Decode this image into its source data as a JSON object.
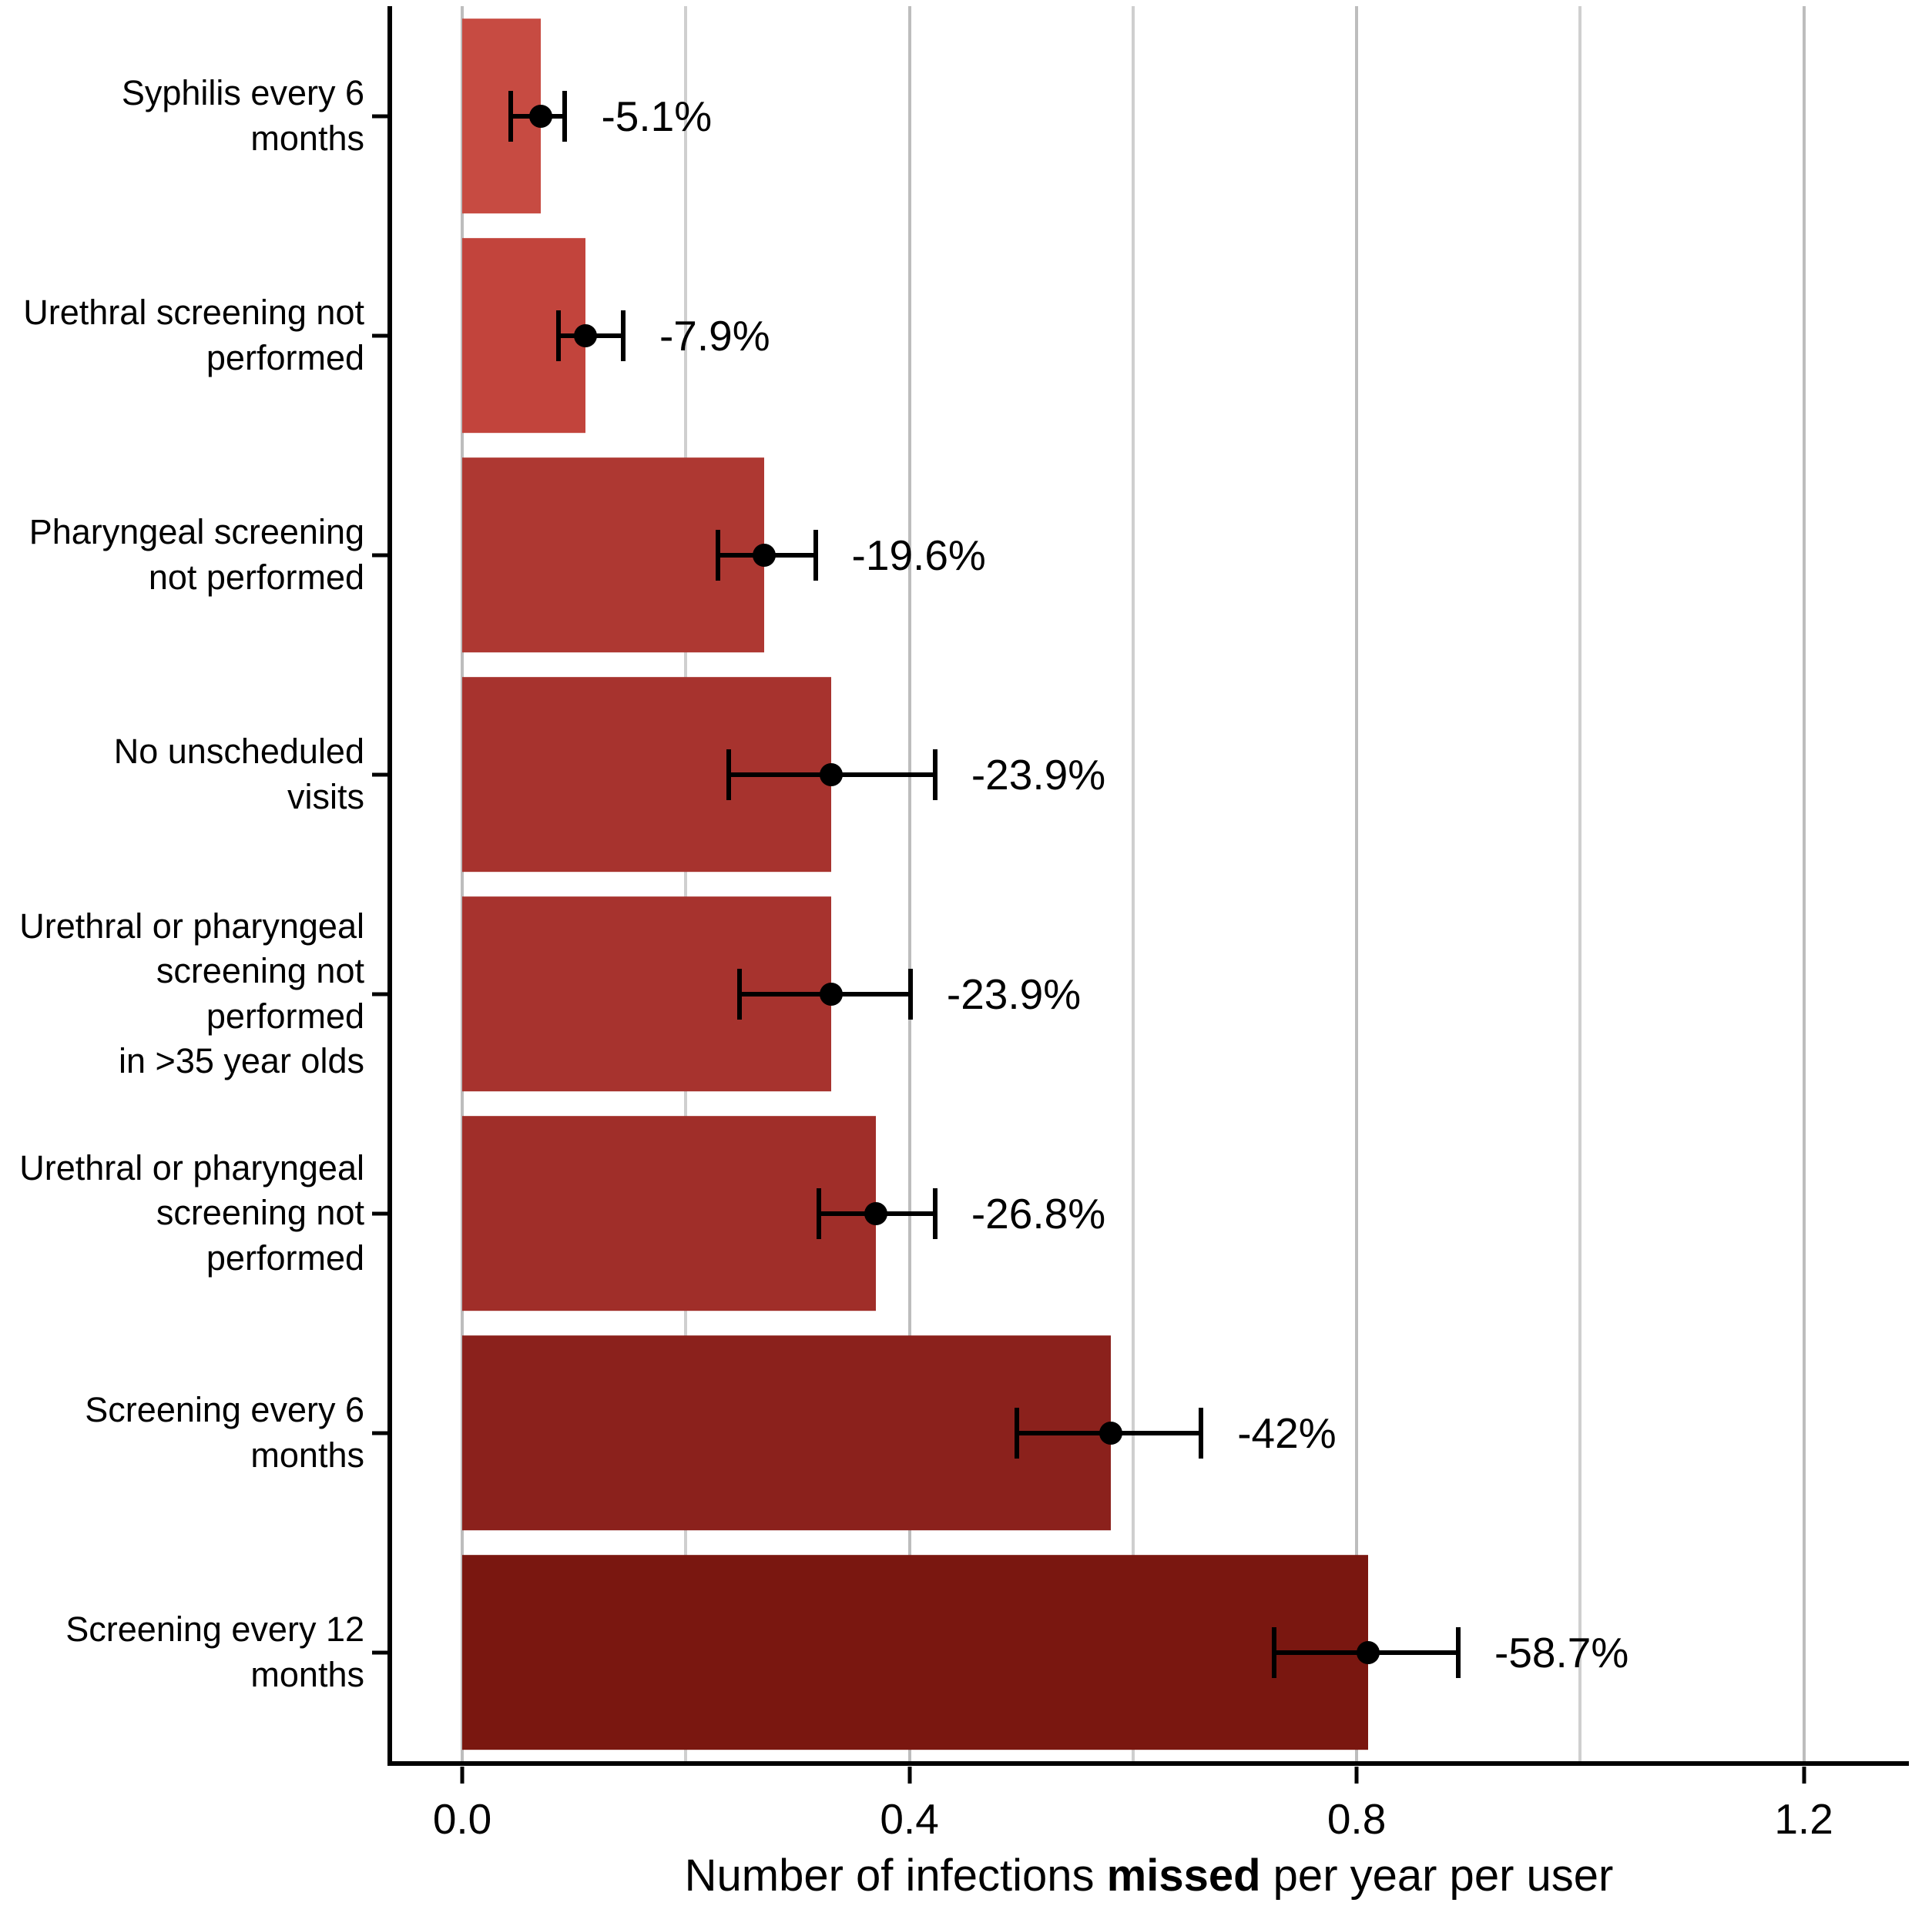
{
  "chart_data": {
    "type": "bar",
    "orientation": "horizontal",
    "title": "",
    "xlabel_parts": {
      "prefix": "Number of infections ",
      "bold": "missed",
      "suffix": " per year per user"
    },
    "ylabel": "",
    "x_domain": [
      -0.0655,
      1.294
    ],
    "xlim": [
      0,
      1.2
    ],
    "grid": "vertical-only",
    "legend": "none",
    "x_ticks": [
      {
        "value": 0.0,
        "label": "0.0"
      },
      {
        "value": 0.4,
        "label": "0.4"
      },
      {
        "value": 0.8,
        "label": "0.8"
      },
      {
        "value": 1.2,
        "label": "1.2"
      }
    ],
    "x_minor_gridlines": [
      0.2,
      0.6,
      1.0
    ],
    "colors": {
      "gridline_major": "#bdbdbd",
      "gridline_minor": "#cfcfcf",
      "axis": "#000000",
      "errorbar": "#000000",
      "point": "#000000",
      "text": "#000000",
      "background": "#ffffff"
    },
    "rows": [
      {
        "category_lines": [
          "Syphilis every 6 months"
        ],
        "value": 0.07,
        "ci_low": 0.041,
        "ci_high": 0.094,
        "label": "-5.1%",
        "color": "#C74B42"
      },
      {
        "category_lines": [
          "Urethral screening not",
          "performed"
        ],
        "value": 0.11,
        "ci_low": 0.084,
        "ci_high": 0.146,
        "label": "-7.9%",
        "color": "#C2443C"
      },
      {
        "category_lines": [
          "Pharyngeal screening",
          "not performed"
        ],
        "value": 0.27,
        "ci_low": 0.227,
        "ci_high": 0.318,
        "label": "-19.6%",
        "color": "#AE3832"
      },
      {
        "category_lines": [
          "No unscheduled",
          "visits"
        ],
        "value": 0.33,
        "ci_low": 0.236,
        "ci_high": 0.425,
        "label": "-23.9%",
        "color": "#A7332E"
      },
      {
        "category_lines": [
          "Urethral or pharyngeal",
          "screening not performed",
          "in >35 year olds"
        ],
        "value": 0.33,
        "ci_low": 0.246,
        "ci_high": 0.403,
        "label": "-23.9%",
        "color": "#A7332E"
      },
      {
        "category_lines": [
          "Urethral or pharyngeal",
          "screening not performed"
        ],
        "value": 0.37,
        "ci_low": 0.317,
        "ci_high": 0.425,
        "label": "-26.8%",
        "color": "#A02E29"
      },
      {
        "category_lines": [
          "Screening every 6 months"
        ],
        "value": 0.58,
        "ci_low": 0.494,
        "ci_high": 0.663,
        "label": "-42%",
        "color": "#8B211C"
      },
      {
        "category_lines": [
          "Screening every 12",
          "months"
        ],
        "value": 0.81,
        "ci_low": 0.724,
        "ci_high": 0.893,
        "label": "-58.7%",
        "color": "#7A1710"
      }
    ]
  }
}
